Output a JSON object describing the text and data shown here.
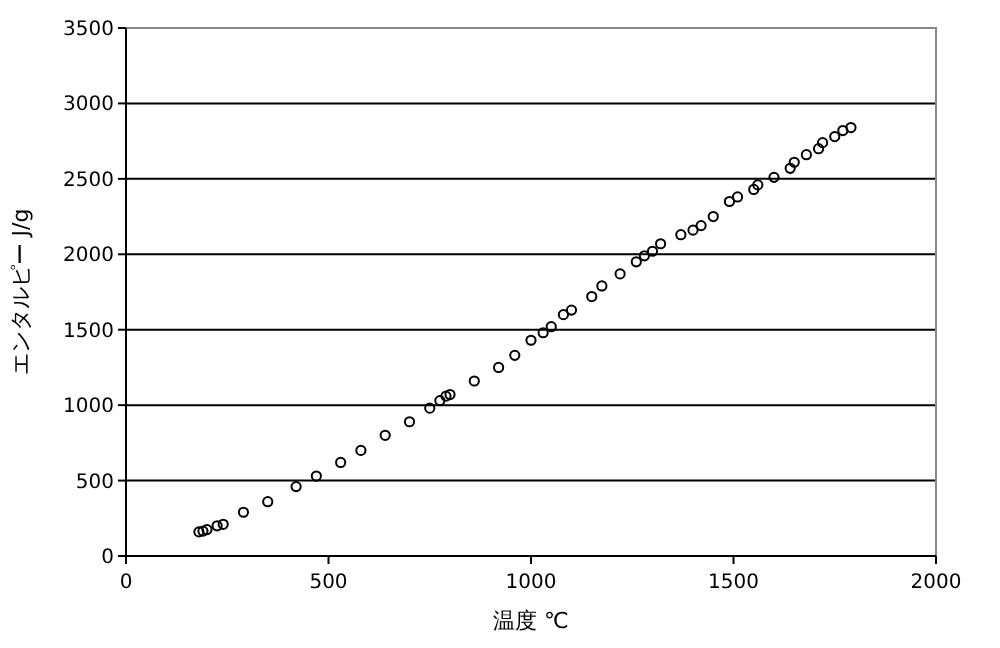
{
  "chart_data": {
    "type": "scatter",
    "xlabel": "温度 ℃",
    "ylabel": "エンタルピー J/g",
    "xlim": [
      0,
      2000
    ],
    "xticks": [
      0,
      500,
      1000,
      1500,
      2000
    ],
    "ylim": [
      0,
      3500
    ],
    "yticks": [
      0,
      500,
      1000,
      1500,
      2000,
      2500,
      3000,
      3500
    ],
    "grid": "y",
    "marker": "circle",
    "series": [
      {
        "color": "#000000",
        "x": [
          180,
          190,
          200,
          225,
          240,
          290,
          350,
          420,
          470,
          530,
          580,
          640,
          700,
          750,
          775,
          790,
          800,
          860,
          920,
          960,
          1000,
          1030,
          1050,
          1080,
          1100,
          1150,
          1175,
          1220,
          1260,
          1280,
          1300,
          1320,
          1370,
          1400,
          1420,
          1450,
          1490,
          1510,
          1550,
          1560,
          1600,
          1640,
          1650,
          1680,
          1710,
          1720,
          1750,
          1770,
          1790
        ],
        "values": [
          160,
          165,
          175,
          200,
          210,
          290,
          360,
          460,
          530,
          620,
          700,
          800,
          890,
          980,
          1030,
          1060,
          1070,
          1160,
          1250,
          1330,
          1430,
          1480,
          1520,
          1600,
          1630,
          1720,
          1790,
          1870,
          1950,
          1990,
          2020,
          2070,
          2130,
          2160,
          2190,
          2250,
          2350,
          2380,
          2430,
          2460,
          2510,
          2570,
          2610,
          2660,
          2700,
          2740,
          2780,
          2820,
          2840
        ]
      }
    ]
  }
}
